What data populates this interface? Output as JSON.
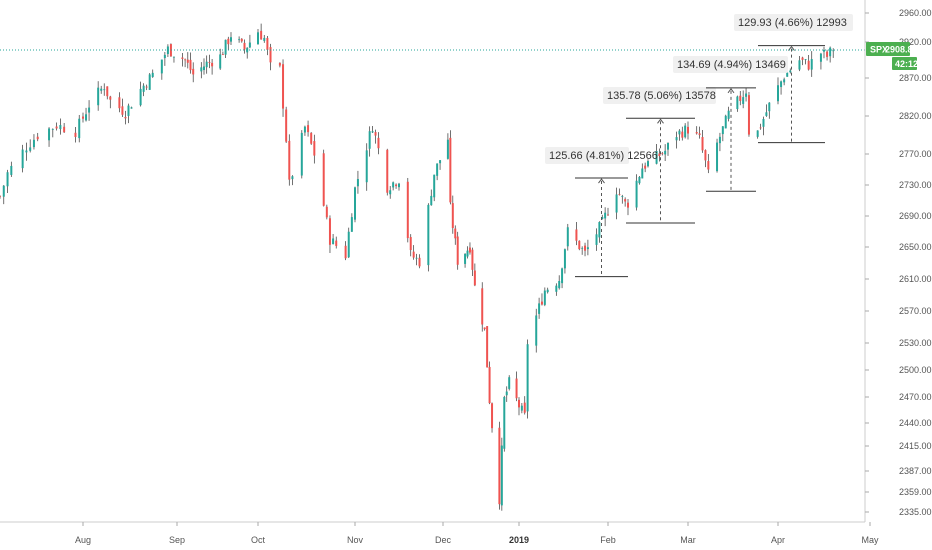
{
  "chart_data": {
    "type": "candlestick",
    "symbol": "SPX",
    "last_price": "2908.86",
    "countdown": "42:12",
    "y_axis": {
      "ticks": [
        "2960.00",
        "2920.00",
        "2870.00",
        "2820.00",
        "2770.00",
        "2730.00",
        "2690.00",
        "2650.00",
        "2610.00",
        "2570.00",
        "2530.00",
        "2500.00",
        "2470.00",
        "2440.00",
        "2415.00",
        "2387.00",
        "2359.00",
        "2335.00"
      ],
      "scale": "log",
      "ylim": [
        2325,
        2975
      ]
    },
    "x_axis": {
      "labels": [
        {
          "text": "Aug",
          "bold": false
        },
        {
          "text": "Sep",
          "bold": false
        },
        {
          "text": "Oct",
          "bold": false
        },
        {
          "text": "Nov",
          "bold": false
        },
        {
          "text": "Dec",
          "bold": false
        },
        {
          "text": "2019",
          "bold": true
        },
        {
          "text": "Feb",
          "bold": false
        },
        {
          "text": "Mar",
          "bold": false
        },
        {
          "text": "Apr",
          "bold": false
        },
        {
          "text": "May",
          "bold": false
        }
      ]
    },
    "price_path": [
      [
        "2018-07-10",
        2715
      ],
      [
        "2018-07-12",
        2745
      ],
      [
        "2018-07-17",
        2780
      ],
      [
        "2018-07-20",
        2795
      ],
      [
        "2018-07-25",
        2808
      ],
      [
        "2018-07-30",
        2800
      ],
      [
        "2018-08-03",
        2835
      ],
      [
        "2018-08-08",
        2860
      ],
      [
        "2018-08-10",
        2840
      ],
      [
        "2018-08-15",
        2825
      ],
      [
        "2018-08-20",
        2855
      ],
      [
        "2018-08-24",
        2875
      ],
      [
        "2018-08-29",
        2910
      ],
      [
        "2018-09-04",
        2895
      ],
      [
        "2018-09-07",
        2875
      ],
      [
        "2018-09-12",
        2890
      ],
      [
        "2018-09-17",
        2900
      ],
      [
        "2018-09-21",
        2930
      ],
      [
        "2018-09-26",
        2910
      ],
      [
        "2018-10-01",
        2935
      ],
      [
        "2018-10-03",
        2925
      ],
      [
        "2018-10-05",
        2885
      ],
      [
        "2018-10-08",
        2882
      ],
      [
        "2018-10-10",
        2790
      ],
      [
        "2018-10-11",
        2730
      ],
      [
        "2018-10-16",
        2805
      ],
      [
        "2018-10-19",
        2770
      ],
      [
        "2018-10-24",
        2660
      ],
      [
        "2018-10-29",
        2640
      ],
      [
        "2018-11-01",
        2725
      ],
      [
        "2018-11-07",
        2808
      ],
      [
        "2018-11-12",
        2728
      ],
      [
        "2018-11-16",
        2738
      ],
      [
        "2018-11-20",
        2640
      ],
      [
        "2018-11-23",
        2632
      ],
      [
        "2018-11-28",
        2745
      ],
      [
        "2018-12-03",
        2790
      ],
      [
        "2018-12-04",
        2700
      ],
      [
        "2018-12-07",
        2633
      ],
      [
        "2018-12-12",
        2651
      ],
      [
        "2018-12-14",
        2600
      ],
      [
        "2018-12-18",
        2545
      ],
      [
        "2018-12-20",
        2467
      ],
      [
        "2018-12-24",
        2351
      ],
      [
        "2018-12-26",
        2467
      ],
      [
        "2018-12-28",
        2485
      ],
      [
        "2019-01-03",
        2447
      ],
      [
        "2019-01-04",
        2531
      ],
      [
        "2019-01-10",
        2596
      ],
      [
        "2019-01-15",
        2610
      ],
      [
        "2019-01-18",
        2670
      ],
      [
        "2019-01-24",
        2642
      ],
      [
        "2019-01-30",
        2681
      ],
      [
        "2019-02-04",
        2724
      ],
      [
        "2019-02-07",
        2706
      ],
      [
        "2019-02-08",
        2707
      ],
      [
        "2019-02-13",
        2753
      ],
      [
        "2019-02-21",
        2774
      ],
      [
        "2019-02-25",
        2796
      ],
      [
        "2019-03-01",
        2803
      ],
      [
        "2019-03-05",
        2789
      ],
      [
        "2019-03-08",
        2743
      ],
      [
        "2019-03-11",
        2783
      ],
      [
        "2019-03-15",
        2822
      ],
      [
        "2019-03-21",
        2854
      ],
      [
        "2019-03-22",
        2800
      ],
      [
        "2019-03-25",
        2799
      ],
      [
        "2019-03-29",
        2834
      ],
      [
        "2019-04-03",
        2873
      ],
      [
        "2019-04-08",
        2895
      ],
      [
        "2019-04-11",
        2888
      ],
      [
        "2019-04-15",
        2905
      ],
      [
        "2019-04-17",
        2900
      ],
      [
        "2019-04-19",
        2911
      ]
    ],
    "measurements": [
      {
        "label": "125.66 (4.81%) 12566",
        "from": 2613,
        "to": 2739
      },
      {
        "label": "135.78 (5.06%) 13578",
        "from": 2681,
        "to": 2817
      },
      {
        "label": "134.69 (4.94%) 13469",
        "from": 2722,
        "to": 2857
      },
      {
        "label": "129.93 (4.66%) 12993",
        "from": 2785,
        "to": 2915
      }
    ],
    "colors": {
      "up": "#26a69a",
      "down": "#ef5350",
      "wick": "#333333",
      "last_price_line": "#26a69a",
      "price_tag": "#4caf50",
      "countdown_tag": "#4caf50"
    },
    "grid": false,
    "legend": "none"
  }
}
